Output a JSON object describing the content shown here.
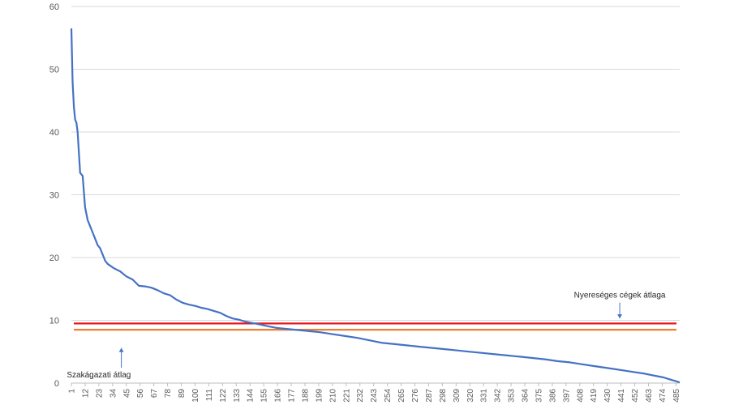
{
  "chart_data": {
    "type": "line",
    "title": "",
    "xlabel": "",
    "ylabel": "",
    "ylim": [
      0,
      60
    ],
    "xlim": [
      1,
      488
    ],
    "y_ticks": [
      0,
      10,
      20,
      30,
      40,
      50,
      60
    ],
    "x_tick_labels": [
      "1",
      "12",
      "23",
      "34",
      "45",
      "56",
      "67",
      "78",
      "89",
      "100",
      "111",
      "122",
      "133",
      "144",
      "155",
      "166",
      "177",
      "188",
      "199",
      "210",
      "221",
      "232",
      "243",
      "254",
      "265",
      "276",
      "287",
      "298",
      "309",
      "320",
      "331",
      "342",
      "353",
      "364",
      "375",
      "386",
      "397",
      "408",
      "419",
      "430",
      "441",
      "452",
      "463",
      "474",
      "485"
    ],
    "grid": "horizontal",
    "series": [
      {
        "color": "#4472C4",
        "x": [
          1,
          2,
          3,
          4,
          5,
          6,
          8,
          10,
          12,
          14,
          16,
          18,
          20,
          22,
          24,
          26,
          28,
          30,
          35,
          40,
          45,
          50,
          55,
          60,
          65,
          70,
          75,
          80,
          85,
          90,
          95,
          100,
          105,
          110,
          115,
          120,
          125,
          130,
          135,
          140,
          145,
          150,
          155,
          160,
          165,
          170,
          175,
          180,
          185,
          190,
          195,
          200,
          210,
          220,
          230,
          240,
          250,
          260,
          270,
          280,
          290,
          300,
          310,
          320,
          330,
          340,
          350,
          360,
          370,
          380,
          390,
          400,
          410,
          420,
          430,
          440,
          450,
          460,
          470,
          475,
          480,
          485,
          488
        ],
        "y": [
          56.5,
          48,
          44,
          42,
          41.5,
          40,
          33.5,
          33,
          28,
          26,
          25,
          24,
          23,
          22,
          21.5,
          20.5,
          19.5,
          19,
          18.3,
          17.8,
          17,
          16.5,
          15.5,
          15.4,
          15.2,
          14.8,
          14.3,
          14,
          13.3,
          12.8,
          12.5,
          12.3,
          12,
          11.8,
          11.5,
          11.2,
          10.7,
          10.3,
          10.1,
          9.8,
          9.6,
          9.4,
          9.2,
          9,
          8.8,
          8.7,
          8.6,
          8.5,
          8.4,
          8.3,
          8.2,
          8.1,
          7.8,
          7.5,
          7.2,
          6.8,
          6.4,
          6.2,
          6,
          5.8,
          5.6,
          5.4,
          5.2,
          5,
          4.8,
          4.6,
          4.4,
          4.2,
          4,
          3.8,
          3.5,
          3.3,
          3,
          2.7,
          2.4,
          2.1,
          1.8,
          1.5,
          1.1,
          0.9,
          0.6,
          0.3,
          0.1
        ]
      }
    ],
    "reference_lines": [
      {
        "y": 9.5,
        "color": "#E8161D"
      },
      {
        "y": 8.5,
        "color": "#ED7D31"
      }
    ],
    "annotations": [
      {
        "text": "Nyereséges cégek átlaga",
        "x": 440,
        "y": 13.6,
        "arrow_to_y": 10.3
      },
      {
        "text": "Szakágazati átlag",
        "x": 23,
        "y": 0.9,
        "arrow_to_y": 5.6
      }
    ]
  }
}
